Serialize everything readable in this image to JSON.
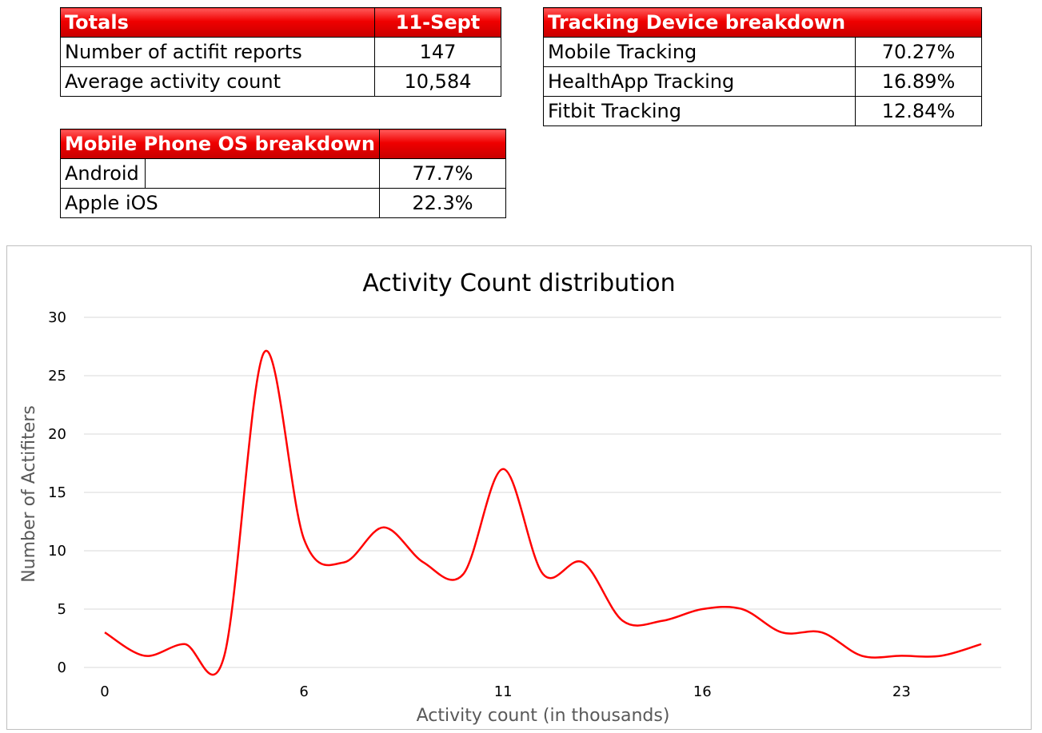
{
  "totals_table": {
    "header": [
      "Totals",
      "11-Sept"
    ],
    "rows": [
      [
        "Number of actifit reports",
        "147"
      ],
      [
        "Average activity count",
        "10,584"
      ]
    ]
  },
  "tracking_table": {
    "header": [
      "Tracking Device breakdown",
      ""
    ],
    "rows": [
      [
        "Mobile Tracking",
        "70.27%"
      ],
      [
        "HealthApp Tracking",
        "16.89%"
      ],
      [
        "Fitbit Tracking",
        "12.84%"
      ]
    ]
  },
  "os_table": {
    "header": [
      "Mobile Phone OS breakdown",
      ""
    ],
    "rows": [
      [
        "Android",
        "77.7%"
      ],
      [
        "Apple iOS",
        "22.3%"
      ]
    ]
  },
  "colors": {
    "accent": "#ff0000",
    "header_bg": "#f00000",
    "grid": "#d9d9d9"
  },
  "chart_data": {
    "type": "line",
    "title": "Activity Count distribution",
    "xlabel": "Activity count (in thousands)",
    "ylabel": "Number of Actifiters",
    "x": [
      0,
      1,
      2,
      3,
      4,
      5,
      6,
      7,
      8,
      9,
      10,
      11,
      12,
      13,
      14,
      15,
      16,
      17,
      18,
      19,
      20,
      21,
      22
    ],
    "values": [
      3,
      1,
      2,
      1,
      27,
      11,
      9,
      12,
      9,
      8,
      17,
      8,
      9,
      4,
      4,
      5,
      5,
      3,
      3,
      1,
      1,
      1,
      2
    ],
    "x_tick_labels": [
      "0",
      "6",
      "11",
      "16",
      "23"
    ],
    "x_tick_positions": [
      0,
      5,
      10,
      15,
      20
    ],
    "yticks": [
      0,
      5,
      10,
      15,
      20,
      25,
      30
    ],
    "ylim": [
      0,
      30
    ],
    "grid": "horizontal",
    "smooth": true,
    "line_color": "#ff0000"
  }
}
